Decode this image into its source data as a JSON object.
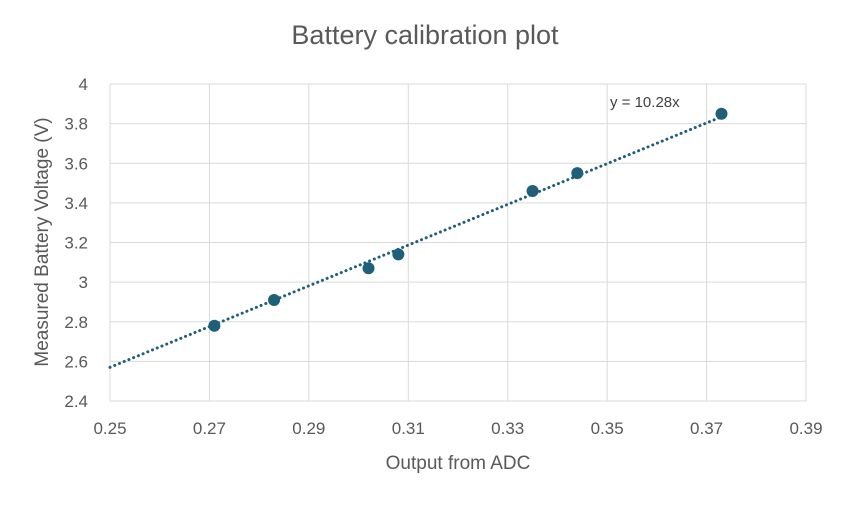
{
  "chart_data": {
    "type": "scatter",
    "title": "Battery calibration plot",
    "xlabel": "Output from ADC",
    "ylabel": "Measured Battery Voltage (V)",
    "xlim": [
      0.25,
      0.39
    ],
    "ylim": [
      2.4,
      4.0
    ],
    "x_ticks": [
      0.25,
      0.27,
      0.29,
      0.31,
      0.33,
      0.35,
      0.37,
      0.39
    ],
    "x_tick_labels": [
      "0.25",
      "0.27",
      "0.29",
      "0.31",
      "0.33",
      "0.35",
      "0.37",
      "0.39"
    ],
    "y_ticks": [
      2.4,
      2.6,
      2.8,
      3.0,
      3.2,
      3.4,
      3.6,
      3.8,
      4.0
    ],
    "y_tick_labels": [
      "2.4",
      "2.6",
      "2.8",
      "3",
      "3.2",
      "3.4",
      "3.6",
      "3.8",
      "4"
    ],
    "grid": true,
    "series": [
      {
        "color": "#1f5f7a",
        "points": [
          {
            "x": 0.271,
            "y": 2.78
          },
          {
            "x": 0.283,
            "y": 2.91
          },
          {
            "x": 0.302,
            "y": 3.07
          },
          {
            "x": 0.308,
            "y": 3.14
          },
          {
            "x": 0.335,
            "y": 3.46
          },
          {
            "x": 0.344,
            "y": 3.55
          },
          {
            "x": 0.373,
            "y": 3.85
          }
        ]
      }
    ],
    "trendline": {
      "type": "linear-through-origin",
      "slope": 10.28,
      "style": "dotted",
      "color": "#1f5f7a",
      "x_range": [
        0.25,
        0.373
      ],
      "equation_label": "y = 10.28x"
    },
    "colors": {
      "gridline": "#d9d9d9",
      "text": "#595959"
    }
  }
}
